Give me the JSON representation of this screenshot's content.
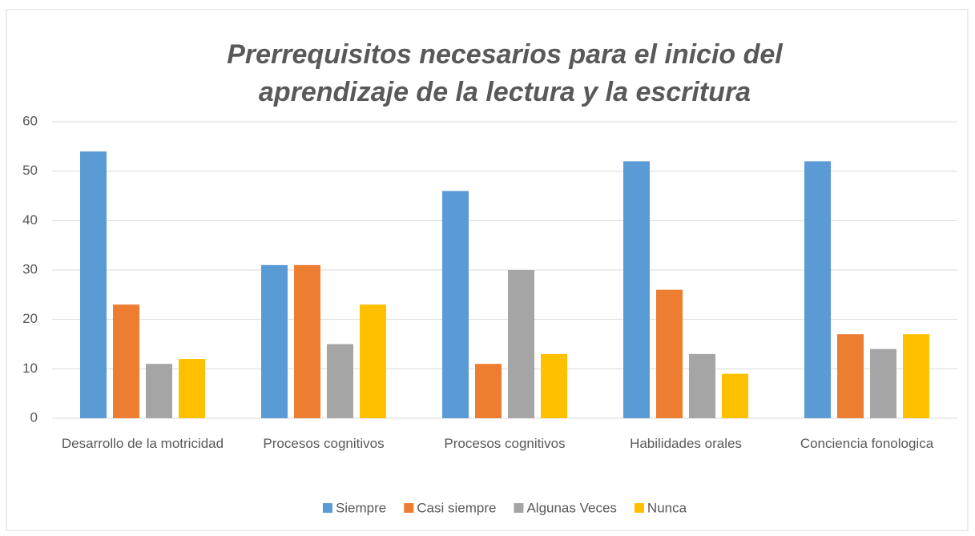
{
  "chart_data": {
    "type": "bar",
    "title": "Prerrequisitos necesarios para el inicio del aprendizaje de la lectura y la escritura",
    "categories": [
      "Desarrollo de la motricidad",
      "Procesos cognitivos",
      "Procesos cognitivos",
      "Habilidades orales",
      "Conciencia fonologica"
    ],
    "series": [
      {
        "name": "Siempre",
        "color": "#5b9bd5",
        "values": [
          54,
          31,
          46,
          52,
          52
        ]
      },
      {
        "name": "Casi siempre",
        "color": "#ed7d31",
        "values": [
          23,
          31,
          11,
          26,
          17
        ]
      },
      {
        "name": "Algunas Veces",
        "color": "#a5a5a5",
        "values": [
          11,
          15,
          30,
          13,
          14
        ]
      },
      {
        "name": "Nunca",
        "color": "#ffc000",
        "values": [
          12,
          23,
          13,
          9,
          17
        ]
      }
    ],
    "ylim": [
      0,
      60
    ],
    "yticks": [
      0,
      10,
      20,
      30,
      40,
      50,
      60
    ],
    "grid": true,
    "legend": "bottom"
  }
}
